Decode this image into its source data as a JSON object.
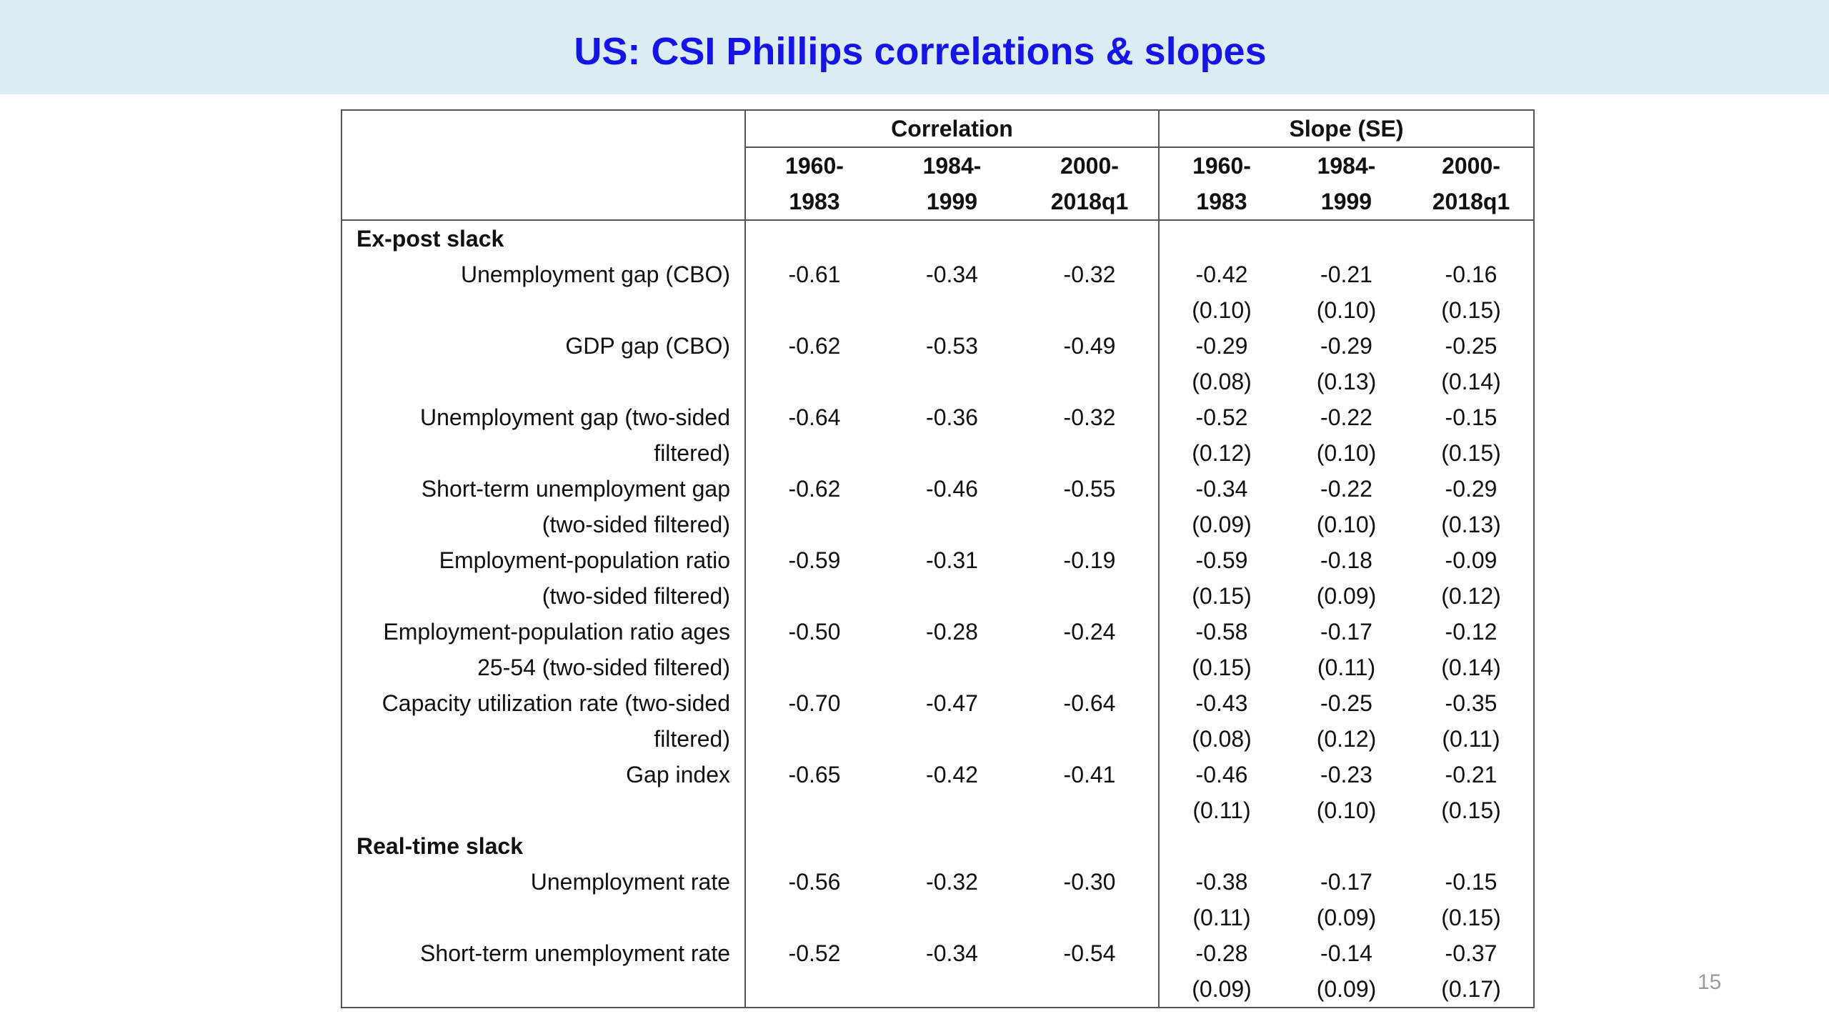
{
  "title": "US: CSI Phillips correlations & slopes",
  "page_number": "15",
  "table": {
    "groups": [
      "Correlation",
      "Slope (SE)"
    ],
    "periods": [
      {
        "line1": "1960-",
        "line2": "1983"
      },
      {
        "line1": "1984-",
        "line2": "1999"
      },
      {
        "line1": "2000-",
        "line2": "2018q1"
      }
    ],
    "sections": [
      {
        "name": "Ex-post slack",
        "rows": [
          {
            "label_1": "Unemployment gap (CBO)",
            "label_2": "",
            "corr": [
              "-0.61",
              "-0.34",
              "-0.32"
            ],
            "slope": [
              "-0.42",
              "-0.21",
              "-0.16"
            ],
            "se": [
              "(0.10)",
              "(0.10)",
              "(0.15)"
            ]
          },
          {
            "label_1": "GDP gap (CBO)",
            "label_2": "",
            "corr": [
              "-0.62",
              "-0.53",
              "-0.49"
            ],
            "slope": [
              "-0.29",
              "-0.29",
              "-0.25"
            ],
            "se": [
              "(0.08)",
              "(0.13)",
              "(0.14)"
            ]
          },
          {
            "label_1": "Unemployment gap (two-sided",
            "label_2": "filtered)",
            "corr": [
              "-0.64",
              "-0.36",
              "-0.32"
            ],
            "slope": [
              "-0.52",
              "-0.22",
              "-0.15"
            ],
            "se": [
              "(0.12)",
              "(0.10)",
              "(0.15)"
            ]
          },
          {
            "label_1": "Short-term unemployment gap",
            "label_2": "(two-sided filtered)",
            "corr": [
              "-0.62",
              "-0.46",
              "-0.55"
            ],
            "slope": [
              "-0.34",
              "-0.22",
              "-0.29"
            ],
            "se": [
              "(0.09)",
              "(0.10)",
              "(0.13)"
            ]
          },
          {
            "label_1": "Employment-population ratio",
            "label_2": "(two-sided filtered)",
            "corr": [
              "-0.59",
              "-0.31",
              "-0.19"
            ],
            "slope": [
              "-0.59",
              "-0.18",
              "-0.09"
            ],
            "se": [
              "(0.15)",
              "(0.09)",
              "(0.12)"
            ]
          },
          {
            "label_1": "Employment-population ratio ages",
            "label_2": "25-54 (two-sided filtered)",
            "corr": [
              "-0.50",
              "-0.28",
              "-0.24"
            ],
            "slope": [
              "-0.58",
              "-0.17",
              "-0.12"
            ],
            "se": [
              "(0.15)",
              "(0.11)",
              "(0.14)"
            ]
          },
          {
            "label_1": "Capacity utilization rate (two-sided",
            "label_2": "filtered)",
            "corr": [
              "-0.70",
              "-0.47",
              "-0.64"
            ],
            "slope": [
              "-0.43",
              "-0.25",
              "-0.35"
            ],
            "se": [
              "(0.08)",
              "(0.12)",
              "(0.11)"
            ]
          },
          {
            "label_1": "Gap index",
            "label_2": "",
            "corr": [
              "-0.65",
              "-0.42",
              "-0.41"
            ],
            "slope": [
              "-0.46",
              "-0.23",
              "-0.21"
            ],
            "se": [
              "(0.11)",
              "(0.10)",
              "(0.15)"
            ]
          }
        ]
      },
      {
        "name": "Real-time slack",
        "rows": [
          {
            "label_1": "Unemployment rate",
            "label_2": "",
            "corr": [
              "-0.56",
              "-0.32",
              "-0.30"
            ],
            "slope": [
              "-0.38",
              "-0.17",
              "-0.15"
            ],
            "se": [
              "(0.11)",
              "(0.09)",
              "(0.15)"
            ]
          },
          {
            "label_1": "Short-term unemployment rate",
            "label_2": "",
            "corr": [
              "-0.52",
              "-0.34",
              "-0.54"
            ],
            "slope": [
              "-0.28",
              "-0.14",
              "-0.37"
            ],
            "se": [
              "(0.09)",
              "(0.09)",
              "(0.17)"
            ]
          }
        ]
      }
    ]
  },
  "colors": {
    "title_bar_bg": "#dcecf4",
    "title_text": "#1414e6",
    "page_number": "#9a9a9a",
    "table_border": "#555555"
  }
}
